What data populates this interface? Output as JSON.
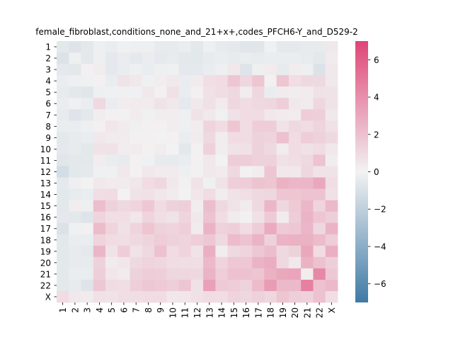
{
  "chart_data": {
    "type": "heatmap",
    "title": "female_fibroblast,conditions_none_and_21+x+,codes_PFCH6-Y_and_D529-2",
    "xlabel": "",
    "ylabel": "",
    "row_labels": [
      "1",
      "2",
      "3",
      "4",
      "5",
      "6",
      "7",
      "8",
      "9",
      "10",
      "11",
      "12",
      "13",
      "14",
      "15",
      "16",
      "17",
      "18",
      "19",
      "20",
      "21",
      "22",
      "X"
    ],
    "col_labels": [
      "1",
      "2",
      "3",
      "4",
      "5",
      "6",
      "7",
      "8",
      "9",
      "10",
      "11",
      "12",
      "13",
      "14",
      "15",
      "16",
      "17",
      "18",
      "19",
      "20",
      "21",
      "22",
      "X"
    ],
    "colorbar": {
      "vmin": -7,
      "vmax": 7,
      "ticks": [
        -6,
        -4,
        -2,
        0,
        2,
        4,
        6
      ],
      "tick_labels": [
        "−6",
        "−4",
        "−2",
        "0",
        "2",
        "4",
        "6"
      ],
      "colors": {
        "low": "#3f7aa6",
        "mid": "#f2f2f2",
        "high": "#df4577"
      }
    },
    "values": [
      [
        -0.6,
        -0.8,
        -0.6,
        -0.2,
        -0.3,
        -0.1,
        -0.2,
        -0.2,
        -0.4,
        -0.4,
        -0.3,
        -0.6,
        -0.2,
        -0.4,
        -0.5,
        -0.7,
        -0.7,
        -0.1,
        -0.5,
        -0.5,
        -0.4,
        -0.4,
        0.4
      ],
      [
        -0.9,
        -0.2,
        -0.6,
        -0.2,
        -0.5,
        -0.3,
        -0.5,
        -0.3,
        -0.5,
        -0.4,
        -0.6,
        -0.6,
        -0.4,
        -0.3,
        -0.4,
        -0.3,
        -0.4,
        -0.3,
        -0.3,
        -0.3,
        -0.4,
        -0.6,
        0.3
      ],
      [
        -0.5,
        -0.6,
        0.1,
        0.2,
        -0.5,
        -0.3,
        -0.2,
        -0.3,
        -0.2,
        -0.1,
        -0.5,
        -0.5,
        -0.3,
        -0.2,
        0.4,
        -0.8,
        -0.2,
        0.3,
        -0.4,
        0.2,
        -0.2,
        -0.9,
        0.4
      ],
      [
        -0.3,
        -0.2,
        -0.1,
        0.1,
        -0.3,
        0.6,
        0.4,
        -0.1,
        0.2,
        0.4,
        -0.3,
        0.3,
        0.8,
        0.9,
        1.8,
        1.1,
        1.8,
        0.1,
        1.8,
        0.8,
        1.0,
        1.0,
        0.4
      ],
      [
        -0.4,
        -0.6,
        -0.7,
        -0.2,
        -0.1,
        -0.1,
        -0.1,
        0.4,
        0.1,
        0.7,
        -0.3,
        0.1,
        0.7,
        0.9,
        1.0,
        0.2,
        1.1,
        -0.3,
        0.3,
        0.2,
        0.3,
        0.7,
        0.6
      ],
      [
        -0.3,
        -0.1,
        -0.3,
        1.0,
        -0.3,
        0.2,
        0.3,
        0.3,
        0.6,
        0.4,
        -0.5,
        0.4,
        0.7,
        0.3,
        1.1,
        0.9,
        1.0,
        1.1,
        1.4,
        0.4,
        0.3,
        1.1,
        0.6
      ],
      [
        -0.4,
        -0.8,
        -0.6,
        0.2,
        0.1,
        0.1,
        0.3,
        -0.1,
        0.2,
        0.2,
        -0.2,
        0.6,
        0.4,
        -0.1,
        0.7,
        0.9,
        0.9,
        0.4,
        0.3,
        0.3,
        1.5,
        1.4,
        0.4
      ],
      [
        -0.3,
        -0.3,
        -0.2,
        0.1,
        0.5,
        0.3,
        -0.1,
        0.1,
        0.1,
        0.2,
        -0.2,
        0.2,
        1.2,
        0.9,
        1.8,
        0.9,
        1.5,
        1.5,
        0.6,
        1.0,
        0.9,
        1.2,
        0.7
      ],
      [
        -0.6,
        -0.4,
        -0.3,
        0.4,
        0.3,
        0.3,
        0.1,
        0.1,
        0.0,
        0.1,
        -0.3,
        0.3,
        1.0,
        0.2,
        0.9,
        0.9,
        1.3,
        1.2,
        2.0,
        0.9,
        1.5,
        1.3,
        1.0
      ],
      [
        -0.5,
        -0.4,
        -0.6,
        0.6,
        0.6,
        0.2,
        0.3,
        0.1,
        0.2,
        0.0,
        -0.6,
        0.1,
        1.3,
        0.2,
        0.6,
        0.7,
        1.3,
        1.0,
        0.3,
        0.9,
        0.7,
        0.9,
        0.4
      ],
      [
        -0.7,
        -0.6,
        -0.6,
        0.2,
        -0.3,
        -0.4,
        0.1,
        -0.1,
        -0.4,
        -0.4,
        -0.3,
        0.1,
        0.4,
        0.0,
        1.5,
        1.5,
        1.3,
        1.3,
        0.7,
        0.8,
        1.0,
        1.9,
        0.2
      ],
      [
        -1.2,
        -0.6,
        -0.5,
        -0.1,
        -0.1,
        0.4,
        0.1,
        0.4,
        0.3,
        0.3,
        -0.2,
        0.1,
        0.4,
        0.3,
        1.0,
        0.1,
        0.2,
        1.8,
        0.4,
        0.4,
        1.1,
        0.6,
        0.6
      ],
      [
        -0.5,
        -0.2,
        0.0,
        0.4,
        0.3,
        0.3,
        0.5,
        0.9,
        1.1,
        0.4,
        0.1,
        0.6,
        -0.1,
        0.6,
        1.4,
        1.5,
        1.9,
        1.8,
        2.6,
        2.4,
        2.4,
        3.0,
        0.8
      ],
      [
        -0.6,
        -0.4,
        -0.3,
        0.8,
        0.9,
        0.0,
        0.6,
        0.7,
        0.5,
        0.3,
        0.0,
        0.5,
        0.9,
        0.2,
        0.6,
        0.8,
        1.0,
        1.1,
        1.8,
        1.8,
        1.9,
        1.9,
        0.7
      ],
      [
        -0.6,
        0.2,
        -0.2,
        2.1,
        1.3,
        1.0,
        1.2,
        1.7,
        0.9,
        1.3,
        1.4,
        0.2,
        2.1,
        1.0,
        0.6,
        0.3,
        1.0,
        2.4,
        1.1,
        1.6,
        2.4,
        1.2,
        2.3
      ],
      [
        -0.5,
        -0.6,
        -0.8,
        1.2,
        0.8,
        0.8,
        0.5,
        1.2,
        0.8,
        0.6,
        1.2,
        0.4,
        1.9,
        0.9,
        0.3,
        0.1,
        0.7,
        1.6,
        0.3,
        1.5,
        2.5,
        1.8,
        1.4
      ],
      [
        -0.9,
        -0.1,
        0.1,
        2.2,
        1.2,
        0.7,
        1.2,
        1.8,
        1.3,
        1.2,
        1.4,
        0.3,
        2.5,
        1.3,
        1.4,
        0.9,
        1.5,
        2.9,
        1.6,
        1.7,
        2.4,
        1.1,
        2.5
      ],
      [
        -0.6,
        -0.3,
        -0.3,
        1.2,
        0.9,
        0.8,
        1.0,
        1.2,
        1.5,
        1.3,
        1.2,
        1.4,
        1.7,
        1.0,
        2.2,
        1.9,
        2.5,
        1.3,
        2.5,
        2.6,
        2.6,
        2.2,
        1.5
      ],
      [
        -0.6,
        -0.4,
        -0.5,
        2.4,
        0.6,
        1.5,
        0.6,
        1.0,
        2.0,
        0.9,
        1.2,
        0.6,
        2.7,
        0.2,
        1.0,
        1.2,
        1.7,
        2.1,
        1.0,
        1.3,
        3.0,
        0.9,
        2.7
      ],
      [
        -0.6,
        -0.4,
        -0.4,
        1.3,
        0.3,
        0.5,
        1.0,
        1.2,
        1.1,
        0.9,
        0.8,
        0.8,
        2.3,
        1.2,
        1.7,
        1.7,
        2.5,
        2.8,
        1.0,
        0.4,
        2.6,
        2.0,
        1.4
      ],
      [
        -0.6,
        -0.3,
        -0.3,
        1.4,
        0.5,
        0.3,
        1.3,
        1.5,
        1.4,
        1.1,
        1.1,
        1.0,
        2.5,
        1.5,
        2.0,
        2.0,
        1.8,
        2.6,
        3.0,
        3.1,
        0.2,
        4.3,
        1.7
      ],
      [
        -0.6,
        -0.4,
        -0.8,
        1.7,
        0.9,
        0.8,
        1.4,
        1.7,
        1.6,
        1.4,
        1.8,
        0.7,
        3.3,
        1.6,
        1.5,
        1.3,
        2.2,
        3.5,
        2.3,
        2.3,
        4.6,
        2.0,
        2.3
      ],
      [
        0.9,
        0.4,
        0.3,
        0.7,
        0.6,
        0.8,
        0.8,
        0.9,
        0.9,
        0.4,
        0.5,
        0.7,
        0.9,
        0.8,
        1.2,
        1.1,
        1.3,
        1.1,
        1.8,
        1.4,
        1.3,
        2.0,
        0.8
      ]
    ]
  }
}
